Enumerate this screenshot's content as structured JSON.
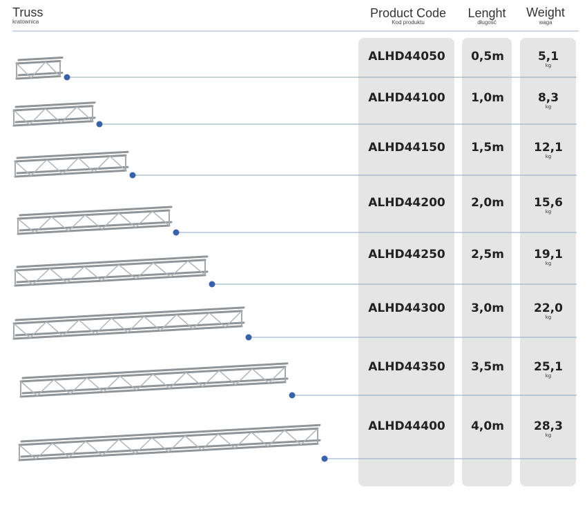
{
  "header": {
    "truss": "Truss",
    "truss_sub": "kratownica",
    "code": "Product Code",
    "code_sub": "Kod produktu",
    "length": "Lenght",
    "length_sub": "długość",
    "weight": "Weight",
    "weight_sub": "waga"
  },
  "weight_unit": "kg",
  "rows": [
    {
      "code": "ALHD44050",
      "length": "0,5m",
      "weight": "5,1"
    },
    {
      "code": "ALHD44100",
      "length": "1,0m",
      "weight": "8,3"
    },
    {
      "code": "ALHD44150",
      "length": "1,5m",
      "weight": "12,1"
    },
    {
      "code": "ALHD44200",
      "length": "2,0m",
      "weight": "15,6"
    },
    {
      "code": "ALHD44250",
      "length": "2,5m",
      "weight": "19,1"
    },
    {
      "code": "ALHD44300",
      "length": "3,0m",
      "weight": "22,0"
    },
    {
      "code": "ALHD44350",
      "length": "3,5m",
      "weight": "25,1"
    },
    {
      "code": "ALHD44400",
      "length": "4,0m",
      "weight": "28,3"
    }
  ]
}
